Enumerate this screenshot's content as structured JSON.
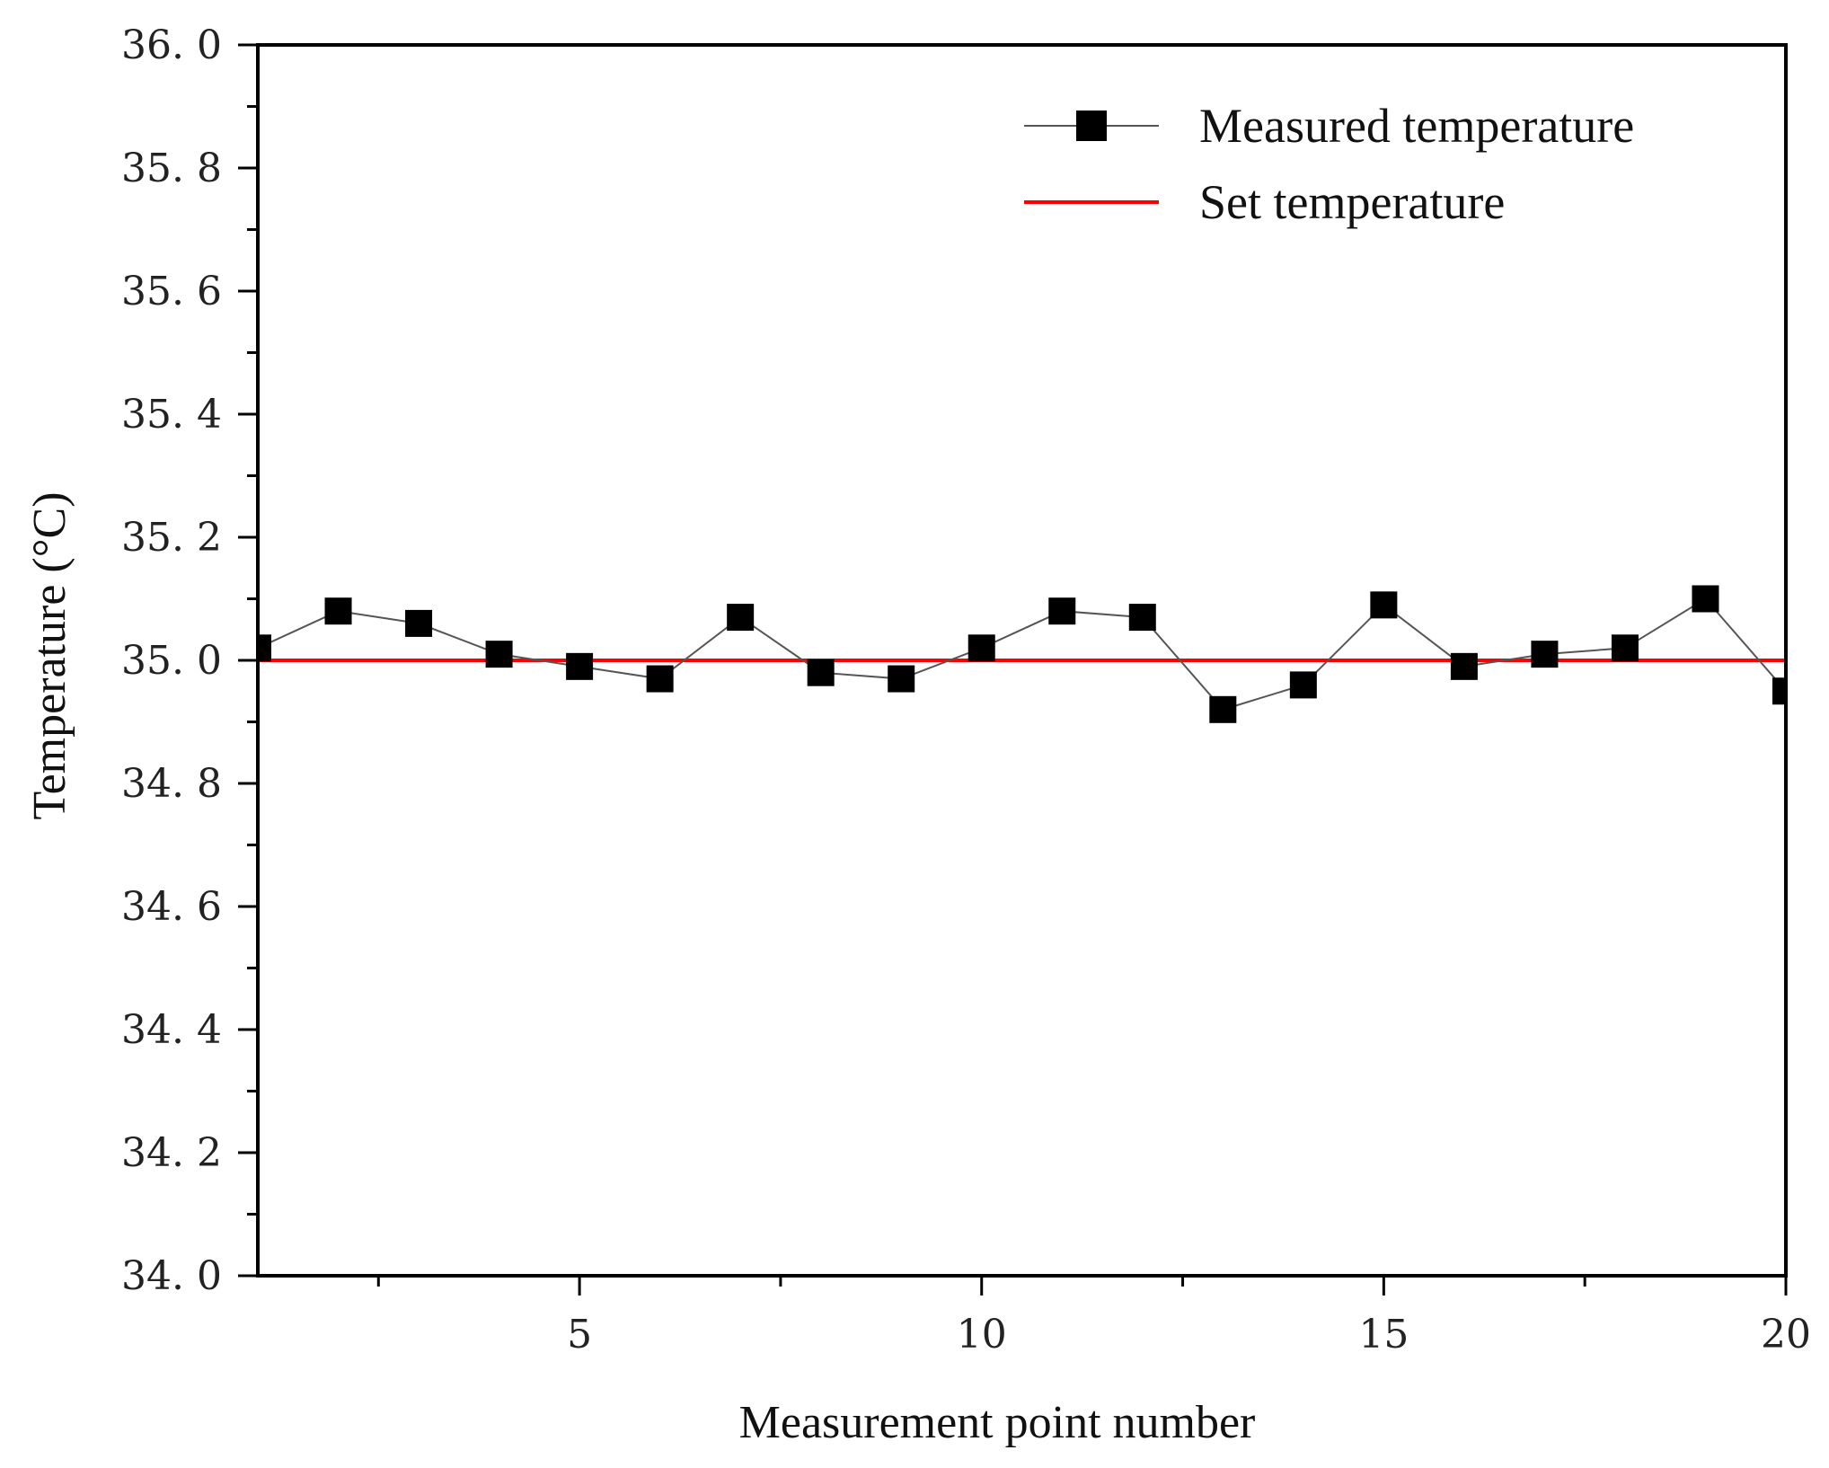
{
  "chart_data": {
    "type": "line",
    "title": "",
    "xlabel": "Measurement point number",
    "ylabel": "Temperature (°C)",
    "xlim": [
      1,
      20
    ],
    "ylim": [
      34.0,
      36.0
    ],
    "x_ticks": [
      5,
      10,
      15,
      20
    ],
    "y_ticks": [
      34.0,
      34.2,
      34.4,
      34.6,
      34.8,
      35.0,
      35.2,
      35.4,
      35.6,
      35.8,
      36.0
    ],
    "x_tick_labels": [
      "5",
      "10",
      "15",
      "20"
    ],
    "y_tick_labels": [
      "34. 0",
      "34. 2",
      "34. 4",
      "34. 6",
      "34. 8",
      "35. 0",
      "35. 2",
      "35. 4",
      "35. 6",
      "35. 8",
      "36. 0"
    ],
    "legend_position": "top-right",
    "grid": false,
    "series": [
      {
        "name": "Measured temperature",
        "color": "#000000",
        "line_color": "#555555",
        "marker": "square",
        "x": [
          1,
          2,
          3,
          4,
          5,
          6,
          7,
          8,
          9,
          10,
          11,
          12,
          13,
          14,
          15,
          16,
          17,
          18,
          19,
          20
        ],
        "values": [
          35.02,
          35.08,
          35.06,
          35.01,
          34.99,
          34.97,
          35.07,
          34.98,
          34.97,
          35.02,
          35.08,
          35.07,
          34.92,
          34.96,
          35.09,
          34.99,
          35.01,
          35.02,
          35.1,
          34.95
        ]
      },
      {
        "name": "Set temperature",
        "color": "#ff0000",
        "marker": "none",
        "x": [
          1,
          20
        ],
        "values": [
          35.0,
          35.0
        ]
      }
    ]
  }
}
